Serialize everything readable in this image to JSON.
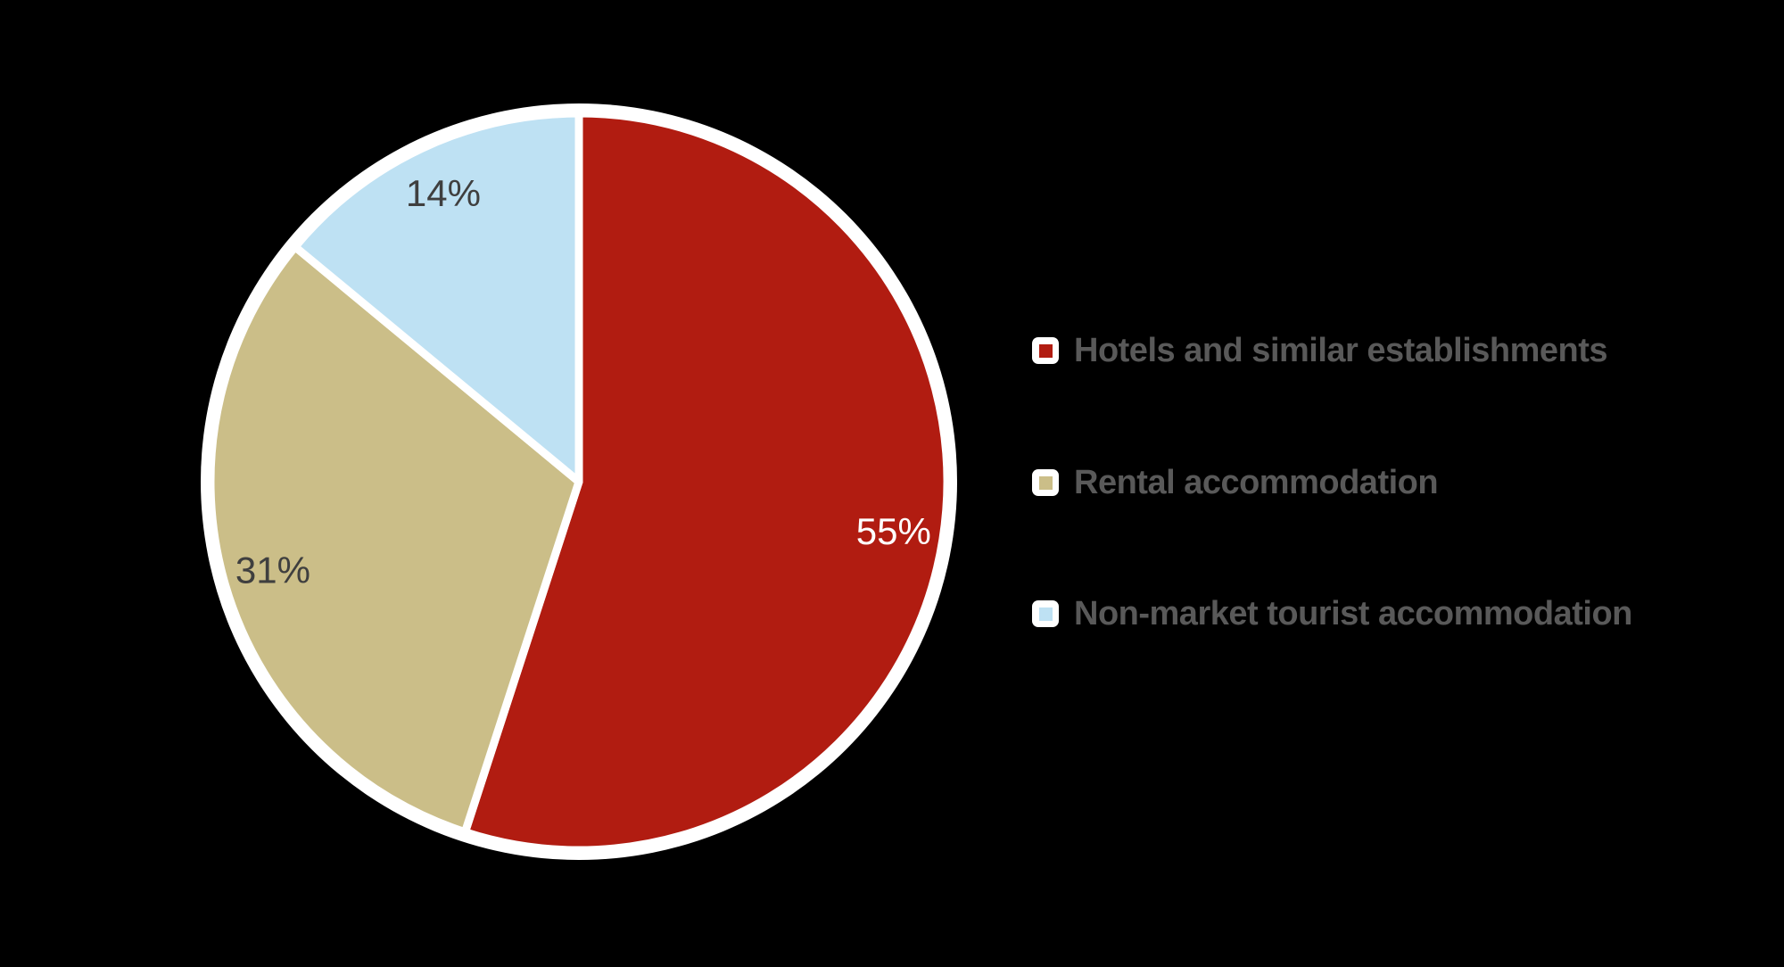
{
  "background_color": "#000000",
  "chart_data": {
    "type": "pie",
    "title": "",
    "legend_position": "right",
    "start_angle_deg": -90,
    "direction": "clockwise",
    "slice_border_color": "#FFFFFF",
    "legend_text_color": "#595959",
    "slices": [
      {
        "label": "Hotels and similar establishments",
        "value": 55,
        "pct_label": "55%",
        "color": "#B11C11",
        "label_color": "#FFFFFF"
      },
      {
        "label": "Rental accommodation",
        "value": 31,
        "pct_label": "31%",
        "color": "#CBBE88",
        "label_color": "#3F3F3F"
      },
      {
        "label": "Non-market tourist accommodation",
        "value": 14,
        "pct_label": "14%",
        "color": "#BEE1F3",
        "label_color": "#3F3F3F"
      }
    ]
  }
}
